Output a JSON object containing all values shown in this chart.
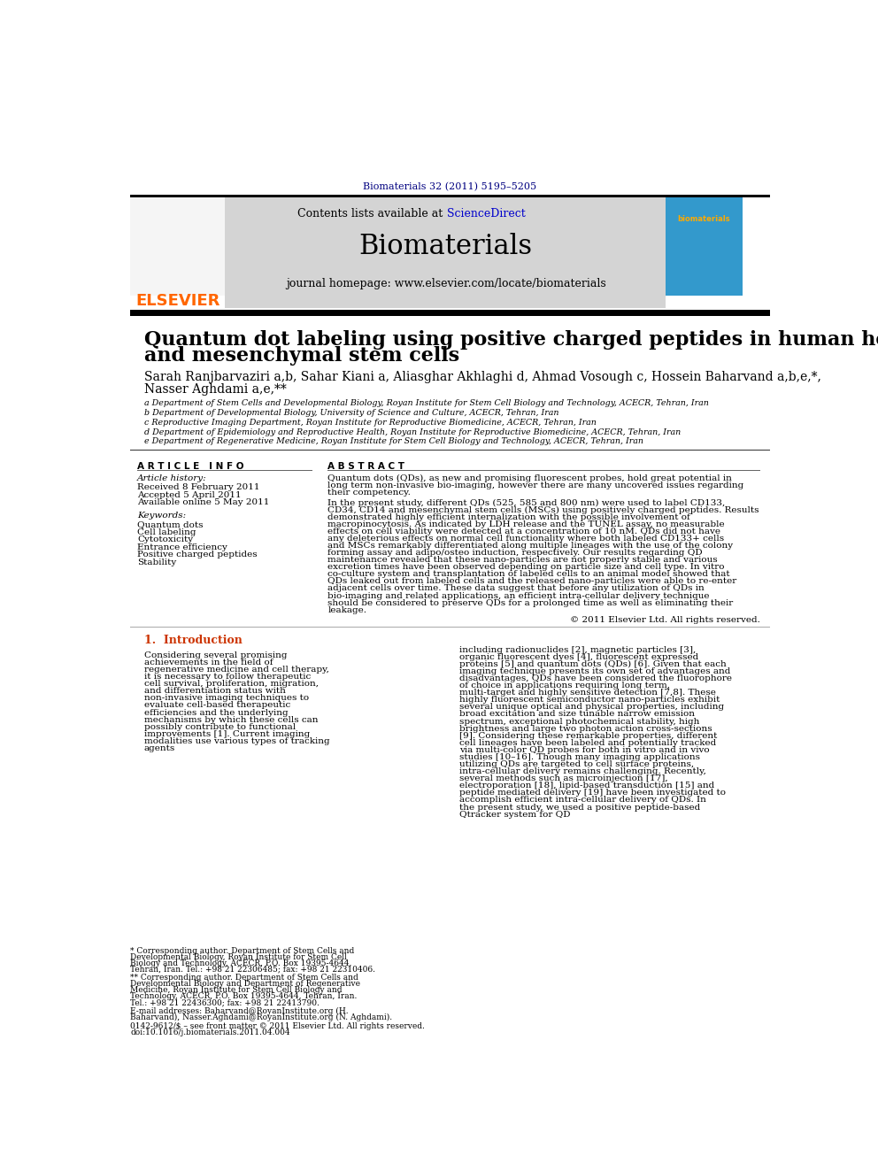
{
  "page_bg": "#ffffff",
  "top_citation": "Biomaterials 32 (2011) 5195–5205",
  "top_citation_color": "#000080",
  "header_bg": "#d4d4d4",
  "contents_text": "Contents lists available at ",
  "sciencedirect_text": "ScienceDirect",
  "sciencedirect_color": "#0000cc",
  "journal_title": "Biomaterials",
  "journal_homepage": "journal homepage: www.elsevier.com/locate/biomaterials",
  "elsevier_color": "#ff6600",
  "paper_title_line1": "Quantum dot labeling using positive charged peptides in human hematopoetic",
  "paper_title_line2": "and mesenchymal stem cells",
  "authors_line1": "Sarah Ranjbarvaziri a,b, Sahar Kiani a, Aliasghar Akhlaghi d, Ahmad Vosough c, Hossein Baharvand a,b,e,*,",
  "authors_line2": "Nasser Aghdami a,e,**",
  "affil_a": "a Department of Stem Cells and Developmental Biology, Royan Institute for Stem Cell Biology and Technology, ACECR, Tehran, Iran",
  "affil_b": "b Department of Developmental Biology, University of Science and Culture, ACECR, Tehran, Iran",
  "affil_c": "c Reproductive Imaging Department, Royan Institute for Reproductive Biomedicine, ACECR, Tehran, Iran",
  "affil_d": "d Department of Epidemiology and Reproductive Health, Royan Institute for Reproductive Biomedicine, ACECR, Tehran, Iran",
  "affil_e": "e Department of Regenerative Medicine, Royan Institute for Stem Cell Biology and Technology, ACECR, Tehran, Iran",
  "article_info_header": "A R T I C L E   I N F O",
  "abstract_header": "A B S T R A C T",
  "article_history_label": "Article history:",
  "received": "Received 8 February 2011",
  "accepted": "Accepted 5 April 2011",
  "available": "Available online 5 May 2011",
  "keywords_label": "Keywords:",
  "keywords": [
    "Quantum dots",
    "Cell labeling",
    "Cytotoxicity",
    "Entrance efficiency",
    "Positive charged peptides",
    "Stability"
  ],
  "abstract_para1": "Quantum dots (QDs), as new and promising fluorescent probes, hold great potential in long term non-invasive bio-imaging, however there are many uncovered issues regarding their competency.",
  "abstract_para2": "In the present study, different QDs (525, 585 and 800 nm) were used to label CD133, CD34, CD14 and mesenchymal stem cells (MSCs) using positively charged peptides. Results demonstrated highly efficient internalization with the possible involvement of macropinocytosis. As indicated by LDH release and the TUNEL assay, no measurable effects on cell viability were detected at a concentration of 10 nM. QDs did not have any deleterious effects on normal cell functionality where both labeled CD133+ cells and MSCs remarkably differentiated along multiple lineages with the use of the colony forming assay and adipo/osteo induction, respectively. Our results regarding QD maintenance revealed that these nano-particles are not properly stable and various excretion times have been observed depending on particle size and cell type. In vitro co-culture system and transplantation of labeled cells to an animal model showed that QDs leaked out from labeled cells and the released nano-particles were able to re-enter adjacent cells over time. These data suggest that before any utilization of QDs in bio-imaging and related applications, an efficient intra-cellular delivery technique should be considered to preserve QDs for a prolonged time as well as eliminating their leakage.",
  "copyright": "© 2011 Elsevier Ltd. All rights reserved.",
  "intro_header": "1.  Introduction",
  "intro_text_left": "Considering several promising achievements in the field of regenerative medicine and cell therapy, it is necessary to follow therapeutic cell survival, proliferation, migration, and differentiation status with non-invasive imaging techniques to evaluate cell-based therapeutic efficiencies and the underlying mechanisms by which these cells can possibly contribute to functional improvements [1]. Current imaging modalities use various types of tracking agents",
  "intro_text_right": "including radionuclides [2], magnetic particles [3], organic fluorescent dyes [4], fluorescent expressed proteins [5] and quantum dots (QDs) [6]. Given that each imaging technique presents its own set of advantages and disadvantages, QDs have been considered the fluorophore of choice in applications requiring long term, multi-target and highly sensitive detection [7,8]. These highly fluorescent semiconductor nano-particles exhibit several unique optical and physical properties, including broad excitation and size tunable narrow emission spectrum, exceptional photochemical stability, high brightness and large two photon action cross-sections [9]. Considering these remarkable properties, different cell lineages have been labeled and potentially tracked via multi-color QD probes for both in vitro and in vivo studies [10–16]. Though many imaging applications utilizing QDs are targeted to cell surface proteins, intra-cellular delivery remains challenging. Recently, several methods such as microinjection [17], electroporation [18], lipid-based transduction [15] and peptide mediated delivery [19] have been investigated to accomplish efficient intra-cellular delivery of QDs. In the present study, we used a positive peptide-based Qtracker system for QD",
  "footnote_star": "* Corresponding author. Department of Stem Cells and Developmental Biology, Royan Institute for Stem Cell Biology and Technology, ACECR, P.O. Box 19395-4644, Tehran, Iran. Tel.: +98 21 22306485; fax: +98 21 22310406.",
  "footnote_dstar": "** Corresponding author. Department of Stem Cells and Developmental Biology and Department of Regenerative Medicine, Royan Institute for Stem Cell Biology and Technology, ACECR, P.O. Box 19395-4644, Tehran, Iran. Tel.: +98 21 22436300; fax: +98 21 22413790.",
  "email_label": "E-mail addresses:",
  "email_text": "Baharvand@RoyanInstitute.org (H. Baharvand), Nasser.Aghdami@RoyanInstitute.org (N. Aghdami).",
  "issn_text": "0142-9612/$ – see front matter © 2011 Elsevier Ltd. All rights reserved.",
  "doi_text": "doi:10.1016/j.biomaterials.2011.04.004"
}
